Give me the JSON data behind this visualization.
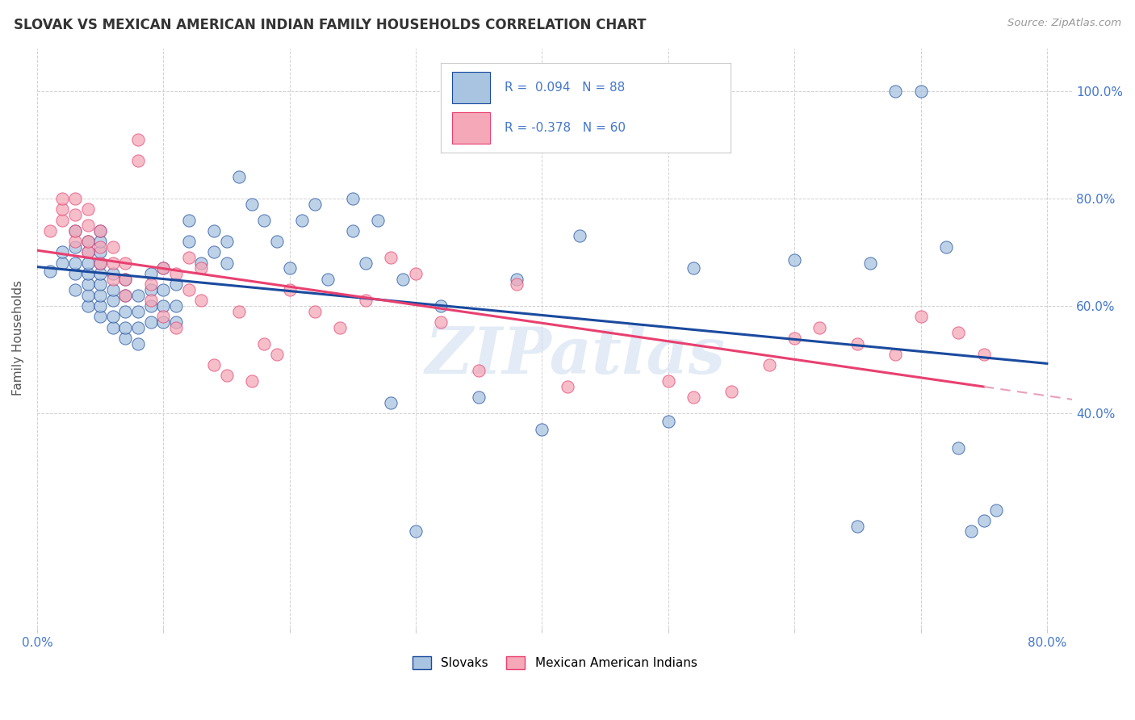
{
  "title": "SLOVAK VS MEXICAN AMERICAN INDIAN FAMILY HOUSEHOLDS CORRELATION CHART",
  "source": "Source: ZipAtlas.com",
  "ylabel": "Family Households",
  "xlim": [
    0.0,
    0.82
  ],
  "ylim": [
    0.0,
    1.08
  ],
  "yticks": [
    0.4,
    0.6,
    0.8,
    1.0
  ],
  "ytick_labels": [
    "40.0%",
    "60.0%",
    "80.0%",
    "100.0%"
  ],
  "xticks": [
    0.0,
    0.1,
    0.2,
    0.3,
    0.4,
    0.5,
    0.6,
    0.7,
    0.8
  ],
  "xtick_labels": [
    "0.0%",
    "",
    "",
    "",
    "",
    "",
    "",
    "",
    "80.0%"
  ],
  "slovak_color": "#a8c4e0",
  "mexican_color": "#f4a8b8",
  "trendline_slovak_color": "#1a4a9e",
  "trendline_mexican_color": "#e84070",
  "trendline_mexican_dash_color": "#e8a0b8",
  "background_color": "#ffffff",
  "grid_color": "#cccccc",
  "title_color": "#333333",
  "axis_label_color": "#4477cc",
  "watermark_color": "#d0dff0",
  "slovak_x": [
    0.01,
    0.02,
    0.02,
    0.03,
    0.03,
    0.03,
    0.03,
    0.03,
    0.04,
    0.04,
    0.04,
    0.04,
    0.04,
    0.04,
    0.04,
    0.05,
    0.05,
    0.05,
    0.05,
    0.05,
    0.05,
    0.05,
    0.05,
    0.05,
    0.06,
    0.06,
    0.06,
    0.06,
    0.06,
    0.07,
    0.07,
    0.07,
    0.07,
    0.07,
    0.08,
    0.08,
    0.08,
    0.08,
    0.09,
    0.09,
    0.09,
    0.09,
    0.1,
    0.1,
    0.1,
    0.1,
    0.11,
    0.11,
    0.11,
    0.12,
    0.12,
    0.13,
    0.14,
    0.14,
    0.15,
    0.15,
    0.16,
    0.17,
    0.18,
    0.19,
    0.2,
    0.21,
    0.22,
    0.23,
    0.25,
    0.25,
    0.26,
    0.27,
    0.28,
    0.29,
    0.3,
    0.32,
    0.35,
    0.38,
    0.4,
    0.43,
    0.5,
    0.52,
    0.6,
    0.65,
    0.66,
    0.68,
    0.7,
    0.72,
    0.73,
    0.74,
    0.75,
    0.76
  ],
  "slovak_y": [
    0.665,
    0.68,
    0.7,
    0.63,
    0.66,
    0.68,
    0.71,
    0.74,
    0.6,
    0.62,
    0.64,
    0.66,
    0.68,
    0.7,
    0.72,
    0.58,
    0.6,
    0.62,
    0.64,
    0.66,
    0.68,
    0.7,
    0.72,
    0.74,
    0.56,
    0.58,
    0.61,
    0.63,
    0.66,
    0.54,
    0.56,
    0.59,
    0.62,
    0.65,
    0.53,
    0.56,
    0.59,
    0.62,
    0.57,
    0.6,
    0.63,
    0.66,
    0.57,
    0.6,
    0.63,
    0.67,
    0.57,
    0.6,
    0.64,
    0.72,
    0.76,
    0.68,
    0.7,
    0.74,
    0.68,
    0.72,
    0.84,
    0.79,
    0.76,
    0.72,
    0.67,
    0.76,
    0.79,
    0.65,
    0.74,
    0.8,
    0.68,
    0.76,
    0.42,
    0.65,
    0.18,
    0.6,
    0.43,
    0.65,
    0.37,
    0.73,
    0.385,
    0.67,
    0.685,
    0.19,
    0.68,
    1.0,
    1.0,
    0.71,
    0.335,
    0.18,
    0.2,
    0.22
  ],
  "mexican_x": [
    0.01,
    0.02,
    0.02,
    0.02,
    0.03,
    0.03,
    0.03,
    0.03,
    0.04,
    0.04,
    0.04,
    0.04,
    0.05,
    0.05,
    0.05,
    0.06,
    0.06,
    0.06,
    0.07,
    0.07,
    0.07,
    0.08,
    0.08,
    0.09,
    0.09,
    0.1,
    0.1,
    0.11,
    0.11,
    0.12,
    0.12,
    0.13,
    0.13,
    0.14,
    0.15,
    0.16,
    0.17,
    0.18,
    0.19,
    0.2,
    0.22,
    0.24,
    0.26,
    0.28,
    0.3,
    0.32,
    0.35,
    0.38,
    0.42,
    0.5,
    0.52,
    0.55,
    0.58,
    0.6,
    0.62,
    0.65,
    0.68,
    0.7,
    0.73,
    0.75
  ],
  "mexican_y": [
    0.74,
    0.76,
    0.78,
    0.8,
    0.72,
    0.74,
    0.77,
    0.8,
    0.7,
    0.72,
    0.75,
    0.78,
    0.68,
    0.71,
    0.74,
    0.65,
    0.68,
    0.71,
    0.62,
    0.65,
    0.68,
    0.87,
    0.91,
    0.61,
    0.64,
    0.58,
    0.67,
    0.56,
    0.66,
    0.63,
    0.69,
    0.61,
    0.67,
    0.49,
    0.47,
    0.59,
    0.46,
    0.53,
    0.51,
    0.63,
    0.59,
    0.56,
    0.61,
    0.69,
    0.66,
    0.57,
    0.48,
    0.64,
    0.45,
    0.46,
    0.43,
    0.44,
    0.49,
    0.54,
    0.56,
    0.53,
    0.51,
    0.58,
    0.55,
    0.51
  ]
}
